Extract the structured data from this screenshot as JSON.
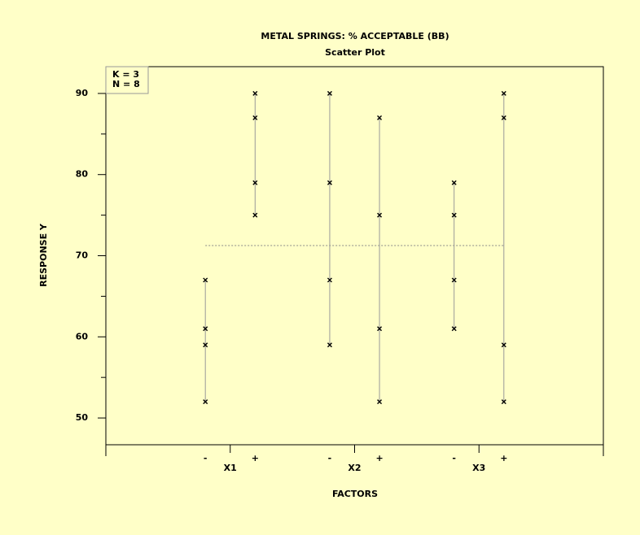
{
  "chart_data": {
    "type": "scatter",
    "title": "METAL SPRINGS: % ACCEPTABLE (BB)",
    "subtitle": "Scatter Plot",
    "annotations": [
      "K = 3",
      "N = 8"
    ],
    "xlabel": "FACTORS",
    "ylabel": "RESPONSE Y",
    "xlim": [
      0,
      4
    ],
    "xticks": [
      {
        "value": 1,
        "label": "X1"
      },
      {
        "value": 2,
        "label": "X2"
      },
      {
        "value": 3,
        "label": "X3"
      }
    ],
    "ylim": [
      46.7,
      93.3
    ],
    "yticks": [
      50,
      60,
      70,
      80,
      90
    ],
    "yminorticks": [
      55,
      65,
      75,
      85
    ],
    "mean": 71.25,
    "groups": [
      {
        "levels": [
          {
            "label": "-",
            "x": 0.8,
            "values": [
              67,
              61,
              59,
              52
            ]
          },
          {
            "label": "+",
            "x": 1.2,
            "values": [
              79,
              75,
              90,
              87
            ]
          }
        ]
      },
      {
        "levels": [
          {
            "label": "-",
            "x": 1.8,
            "values": [
              67,
              79,
              59,
              90
            ]
          },
          {
            "label": "+",
            "x": 2.2,
            "values": [
              61,
              75,
              52,
              87
            ]
          }
        ]
      },
      {
        "levels": [
          {
            "label": "-",
            "x": 2.8,
            "values": [
              67,
              79,
              61,
              75
            ]
          },
          {
            "label": "+",
            "x": 3.2,
            "values": [
              59,
              90,
              52,
              87
            ]
          }
        ]
      }
    ],
    "color": "#000000"
  }
}
